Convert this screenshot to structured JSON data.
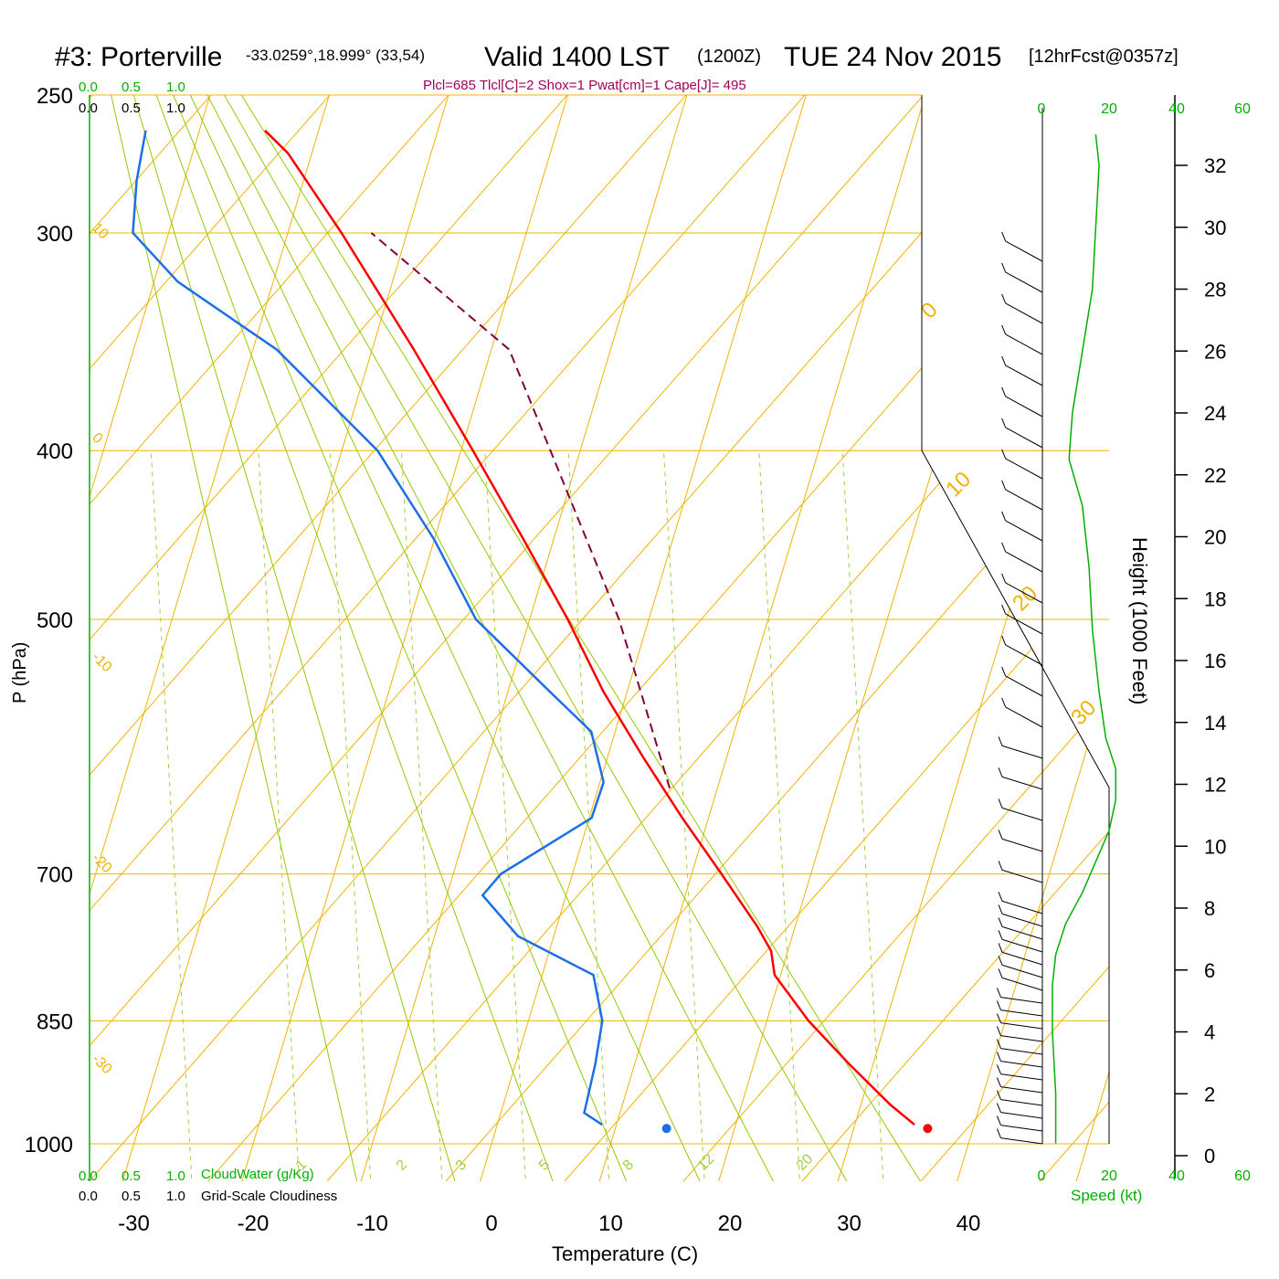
{
  "header": {
    "station": "#3: Porterville",
    "coords": "-33.0259°,18.999° (33,54)",
    "valid": "Valid 1400 LST",
    "utc": "(1200Z)",
    "date": "TUE 24 Nov 2015",
    "forecast": "[12hrFcst@0357z]",
    "indices": "Plcl=685 Tlcl[C]=2 Shox=1 Pwat[cm]=1 Cape[J]= 495"
  },
  "labels": {
    "y_axis": "P (hPa)",
    "x_axis": "Temperature (C)",
    "height_axis": "Height (1000 Feet)",
    "speed_axis": "Speed (kt)",
    "cloud_water": "CloudWater (g/Kg)",
    "cloudiness": "Grid-Scale Cloudiness",
    "scale_ticks": [
      "0.0",
      "0.5",
      "1.0"
    ]
  },
  "colors": {
    "temperature": "#ff0000",
    "dewpoint": "#1e6ee6",
    "parcel": "#800040",
    "isobars_isotherms": "#f0b400",
    "dry_adiabats": "#96c800",
    "mixing_ratio": "#a0d040",
    "green_text": "#00b000",
    "indices_text": "#a0005a"
  },
  "chart_data": {
    "type": "skew-t",
    "pressure_levels": [
      250,
      300,
      400,
      500,
      700,
      850,
      1000
    ],
    "temperature_ticks": [
      -30,
      -20,
      -10,
      0,
      10,
      20,
      30,
      40
    ],
    "height_ticks_kft": [
      0,
      2,
      4,
      6,
      8,
      10,
      12,
      14,
      16,
      18,
      20,
      22,
      24,
      26,
      28,
      30,
      32
    ],
    "isotherm_labels": [
      10,
      0,
      -10,
      -20,
      -30
    ],
    "isotherm_right_labels": [
      0,
      10,
      20,
      30
    ],
    "mixing_ratio_labels": [
      "1",
      "2",
      "3",
      "5",
      "8",
      "12",
      "20"
    ],
    "speed_ticks": [
      "0",
      "20",
      "40",
      "60"
    ],
    "temperature_profile": [
      {
        "p": 975,
        "t": 35.0
      },
      {
        "p": 950,
        "t": 32.5
      },
      {
        "p": 900,
        "t": 28.0
      },
      {
        "p": 850,
        "t": 23.5
      },
      {
        "p": 800,
        "t": 19.5
      },
      {
        "p": 775,
        "t": 18.6
      },
      {
        "p": 750,
        "t": 16.8
      },
      {
        "p": 700,
        "t": 12.5
      },
      {
        "p": 650,
        "t": 7.8
      },
      {
        "p": 600,
        "t": 3.0
      },
      {
        "p": 550,
        "t": -2.0
      },
      {
        "p": 500,
        "t": -6.8
      },
      {
        "p": 450,
        "t": -12.5
      },
      {
        "p": 400,
        "t": -19.0
      },
      {
        "p": 350,
        "t": -26.5
      },
      {
        "p": 300,
        "t": -35.5
      },
      {
        "p": 270,
        "t": -42.0
      },
      {
        "p": 262,
        "t": -44.5
      }
    ],
    "dewpoint_profile": [
      {
        "p": 975,
        "t": 8.8
      },
      {
        "p": 960,
        "t": 7.0
      },
      {
        "p": 900,
        "t": 6.7
      },
      {
        "p": 850,
        "t": 6.2
      },
      {
        "p": 800,
        "t": 4.3
      },
      {
        "p": 760,
        "t": -3.0
      },
      {
        "p": 720,
        "t": -7.0
      },
      {
        "p": 700,
        "t": -6.0
      },
      {
        "p": 650,
        "t": 0.2
      },
      {
        "p": 620,
        "t": 0.3
      },
      {
        "p": 580,
        "t": -2.0
      },
      {
        "p": 550,
        "t": -6.5
      },
      {
        "p": 500,
        "t": -14.5
      },
      {
        "p": 450,
        "t": -20.0
      },
      {
        "p": 400,
        "t": -27.0
      },
      {
        "p": 350,
        "t": -38.0
      },
      {
        "p": 320,
        "t": -48.0
      },
      {
        "p": 300,
        "t": -53.0
      },
      {
        "p": 280,
        "t": -54.0
      },
      {
        "p": 262,
        "t": -54.5
      }
    ],
    "parcel_profile": [
      {
        "p": 625,
        "t": 6.0
      },
      {
        "p": 500,
        "t": -2.5
      },
      {
        "p": 400,
        "t": -12.5
      },
      {
        "p": 350,
        "t": -18.5
      },
      {
        "p": 300,
        "t": -33.0
      }
    ],
    "surface_temperature": 36.2,
    "surface_dewpoint": 14.3,
    "surface_pressure": 980,
    "wind_speed_profile_kt": [
      {
        "h_kft": 0.4,
        "speed": 4
      },
      {
        "h_kft": 2,
        "speed": 4
      },
      {
        "h_kft": 4,
        "speed": 3
      },
      {
        "h_kft": 5.5,
        "speed": 3
      },
      {
        "h_kft": 6.5,
        "speed": 4
      },
      {
        "h_kft": 7.5,
        "speed": 7
      },
      {
        "h_kft": 8.5,
        "speed": 12
      },
      {
        "h_kft": 9.5,
        "speed": 16
      },
      {
        "h_kft": 10.5,
        "speed": 20
      },
      {
        "h_kft": 11.5,
        "speed": 22
      },
      {
        "h_kft": 12.5,
        "speed": 22
      },
      {
        "h_kft": 13.5,
        "speed": 19
      },
      {
        "h_kft": 15,
        "speed": 17
      },
      {
        "h_kft": 17,
        "speed": 15
      },
      {
        "h_kft": 19,
        "speed": 14
      },
      {
        "h_kft": 21,
        "speed": 12
      },
      {
        "h_kft": 22.5,
        "speed": 8
      },
      {
        "h_kft": 24,
        "speed": 9
      },
      {
        "h_kft": 26,
        "speed": 12
      },
      {
        "h_kft": 28,
        "speed": 15
      },
      {
        "h_kft": 30,
        "speed": 16
      },
      {
        "h_kft": 32,
        "speed": 17
      },
      {
        "h_kft": 33,
        "speed": 16
      }
    ]
  }
}
